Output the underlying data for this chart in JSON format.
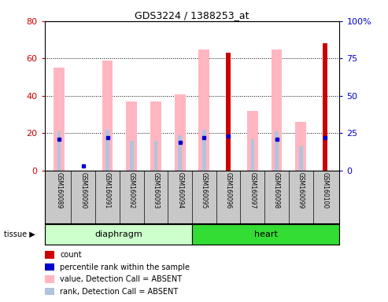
{
  "title": "GDS3224 / 1388253_at",
  "samples": [
    "GSM160089",
    "GSM160090",
    "GSM160091",
    "GSM160092",
    "GSM160093",
    "GSM160094",
    "GSM160095",
    "GSM160096",
    "GSM160097",
    "GSM160098",
    "GSM160099",
    "GSM160100"
  ],
  "tissue_groups": [
    {
      "label": "diaphragm",
      "start": 0,
      "end": 6,
      "color": "#CCFFCC"
    },
    {
      "label": "heart",
      "start": 6,
      "end": 12,
      "color": "#33DD33"
    }
  ],
  "pink_bar_values": [
    55,
    0,
    59,
    37,
    37,
    41,
    65,
    0,
    32,
    65,
    26,
    0
  ],
  "light_blue_bar_values": [
    21,
    0,
    22,
    16,
    16,
    19,
    22,
    0,
    17,
    21,
    13,
    22
  ],
  "red_bar_values": [
    0,
    0,
    0,
    0,
    0,
    0,
    0,
    63,
    0,
    0,
    0,
    68
  ],
  "blue_dot_values": [
    21,
    3,
    22,
    0,
    0,
    19,
    22,
    23,
    0,
    21,
    0,
    22
  ],
  "left_ylim": [
    0,
    80
  ],
  "right_ylim": [
    0,
    100
  ],
  "left_yticks": [
    0,
    20,
    40,
    60,
    80
  ],
  "right_yticks": [
    0,
    25,
    50,
    75,
    100
  ],
  "left_yticklabels": [
    "0",
    "20",
    "40",
    "60",
    "80"
  ],
  "right_yticklabels": [
    "0",
    "25",
    "50",
    "75",
    "100%"
  ],
  "pink_color": "#FFB6C1",
  "light_blue_color": "#B0C4DE",
  "red_color": "#CC0000",
  "blue_color": "#0000CC",
  "axis_color_left": "#CC0000",
  "axis_color_right": "#0000CC",
  "background_color": "#FFFFFF",
  "gray_box_color": "#C8C8C8",
  "legend_items": [
    {
      "label": "count",
      "color": "#CC0000"
    },
    {
      "label": "percentile rank within the sample",
      "color": "#0000CC"
    },
    {
      "label": "value, Detection Call = ABSENT",
      "color": "#FFB6C1"
    },
    {
      "label": "rank, Detection Call = ABSENT",
      "color": "#B0C4DE"
    }
  ]
}
